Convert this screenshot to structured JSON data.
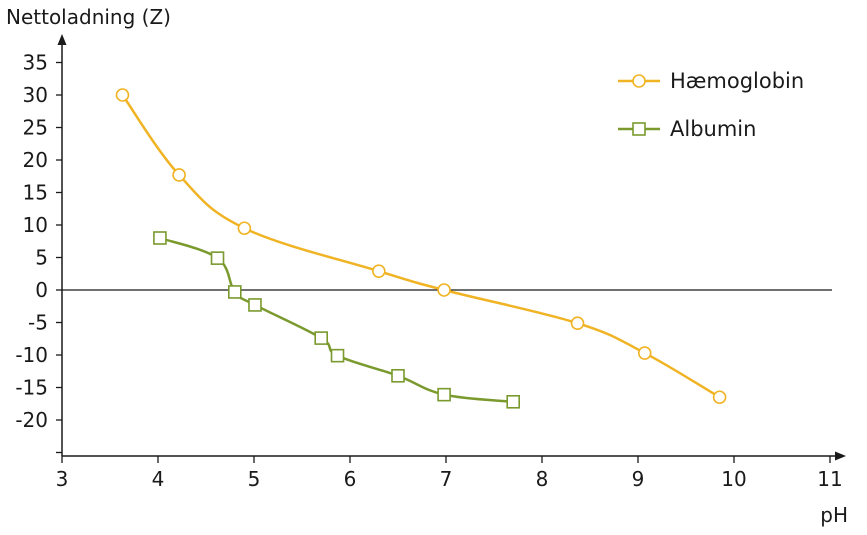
{
  "chart_data": {
    "type": "line",
    "ylabel": "Nettoladning (Z)",
    "xlabel": "pH",
    "xlim": [
      3,
      11
    ],
    "ylim": [
      -25,
      38
    ],
    "x_ticks": [
      3,
      4,
      5,
      6,
      7,
      8,
      9,
      10,
      11
    ],
    "y_ticks": [
      35,
      30,
      25,
      20,
      15,
      10,
      5,
      0,
      -5,
      -10,
      -15,
      -20
    ],
    "y_tick_labels": [
      "35",
      "30",
      "25",
      "20",
      "15",
      "10",
      "5",
      "0",
      "-5",
      "-10",
      "-15",
      "-20"
    ],
    "grid": false,
    "legend": "top-right",
    "series": [
      {
        "name": "Hæmoglobin",
        "color": "#F0B323",
        "marker": "circle",
        "x": [
          3.63,
          4.22,
          4.9,
          6.3,
          6.98,
          8.37,
          9.07,
          9.85
        ],
        "y": [
          30,
          17.7,
          9.5,
          2.9,
          0,
          -5.1,
          -9.7,
          -16.5
        ]
      },
      {
        "name": "Albumin",
        "color": "#7A9A2E",
        "marker": "square",
        "x": [
          4.02,
          4.62,
          4.8,
          5.01,
          5.7,
          5.87,
          6.5,
          6.98,
          7.7
        ],
        "y": [
          8,
          4.9,
          -0.3,
          -2.3,
          -7.4,
          -10.1,
          -13.2,
          -16.1,
          -17.2
        ]
      }
    ]
  }
}
